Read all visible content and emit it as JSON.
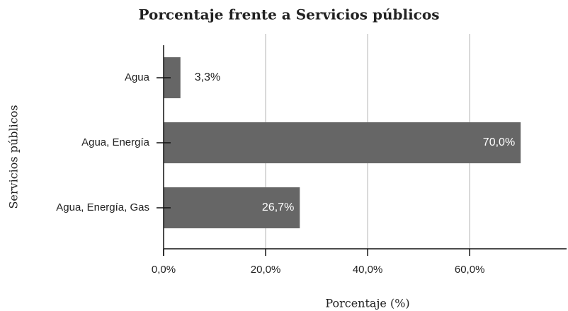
{
  "chart_data": {
    "type": "bar",
    "orientation": "horizontal",
    "title": "Porcentaje frente a Servicios públicos",
    "xlabel": "Porcentaje (%)",
    "ylabel": "Servicios públicos",
    "categories": [
      "Agua",
      "Agua, Energía",
      "Agua, Energía, Gas"
    ],
    "values": [
      3.3,
      70.0,
      26.7
    ],
    "value_labels": [
      "3,3%",
      "70,0%",
      "26,7%"
    ],
    "color": "#666666",
    "xlim": [
      0,
      79
    ],
    "xticks": [
      {
        "value": 0,
        "label": "0,0%"
      },
      {
        "value": 20,
        "label": "20,0%"
      },
      {
        "value": 40,
        "label": "40,0%"
      },
      {
        "value": 60,
        "label": "60,0%"
      }
    ],
    "grid": true
  }
}
